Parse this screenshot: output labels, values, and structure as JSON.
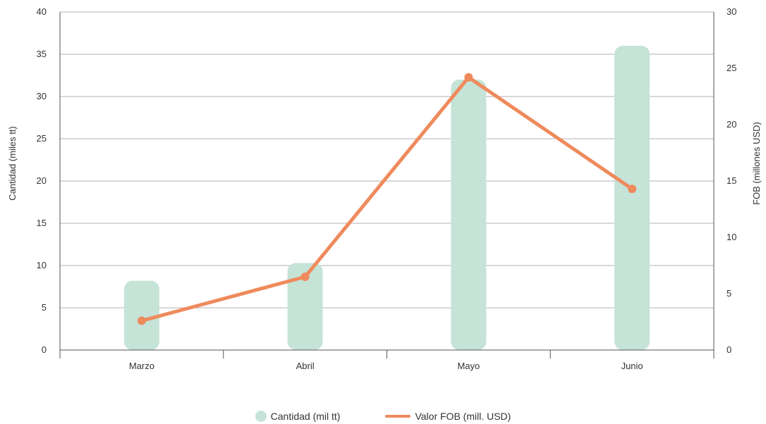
{
  "chart_data": {
    "type": "bar",
    "categories": [
      "Marzo",
      "Abril",
      "Mayo",
      "Junio"
    ],
    "series": [
      {
        "name": "Cantidad (mil tt)",
        "type": "bar",
        "axis": "left",
        "values": [
          8.2,
          10.3,
          32.0,
          36.0
        ]
      },
      {
        "name": "Valor FOB (mill. USD)",
        "type": "line",
        "axis": "right",
        "values": [
          2.6,
          6.5,
          24.2,
          14.3
        ]
      }
    ],
    "ylabel": "Cantidad (miles tt)",
    "ylabel_right": "FOB (millones USD)",
    "ylim": [
      0,
      40
    ],
    "ylim_right": [
      0,
      30
    ],
    "yticks": [
      "0",
      "5",
      "10",
      "15",
      "20",
      "25",
      "30",
      "35",
      "40"
    ],
    "yticks_right": [
      "0",
      "5",
      "10",
      "15",
      "20",
      "25",
      "30"
    ],
    "grid": true,
    "legend_position": "bottom-center"
  },
  "colors": {
    "bar": "#c5e3d7",
    "line": "#ef8a5c",
    "grid": "#999999",
    "axis": "#555555"
  },
  "legend": {
    "bar_label": "Cantidad (mil tt)",
    "line_label": "Valor FOB (mill. USD)"
  }
}
